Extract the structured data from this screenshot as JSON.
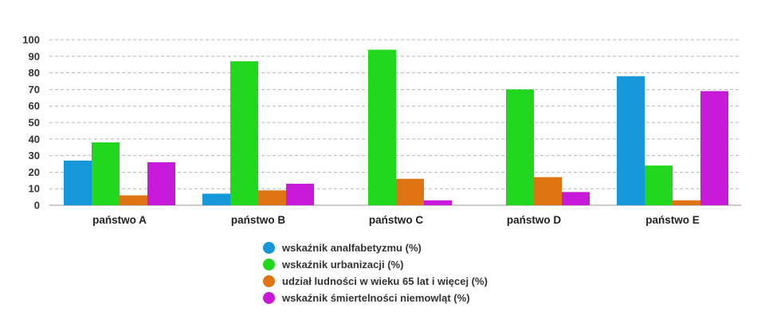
{
  "chart_data": {
    "type": "bar",
    "title": "",
    "xlabel": "",
    "ylabel": "",
    "ylim": [
      0,
      100
    ],
    "yticks": [
      0,
      10,
      20,
      30,
      40,
      50,
      60,
      70,
      80,
      90,
      100
    ],
    "grid": true,
    "legend_position": "bottom",
    "categories": [
      "państwo A",
      "państwo B",
      "państwo C",
      "państwo D",
      "państwo E"
    ],
    "series": [
      {
        "name": "wskaźnik analfabetyzmu (%)",
        "color": "#1597d9",
        "values": [
          27,
          7,
          0,
          0,
          78
        ]
      },
      {
        "name": "wskaźnik urbanizacji (%)",
        "color": "#22d81e",
        "values": [
          38,
          87,
          94,
          70,
          24
        ]
      },
      {
        "name": "udział ludności w wieku 65 lat i więcej (%)",
        "color": "#de7414",
        "values": [
          6,
          9,
          16,
          17,
          3
        ]
      },
      {
        "name": "wskaźnik śmiertelności niemowląt (%)",
        "color": "#c71ad8",
        "values": [
          26,
          13,
          3,
          8,
          69
        ]
      }
    ]
  }
}
